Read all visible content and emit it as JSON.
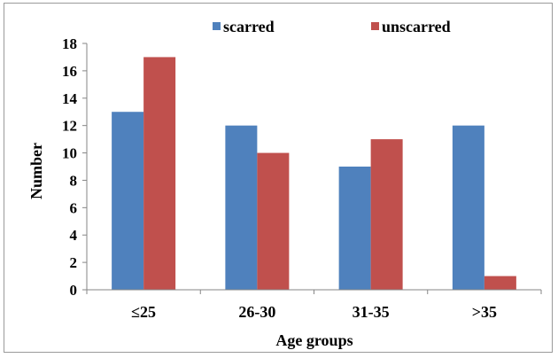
{
  "chart_data": {
    "type": "bar",
    "categories": [
      "≤25",
      "26-30",
      "31-35",
      ">35"
    ],
    "series": [
      {
        "name": "scarred",
        "values": [
          13,
          12,
          9,
          12
        ],
        "color": "#4f81bd"
      },
      {
        "name": "unscarred",
        "values": [
          17,
          10,
          11,
          1
        ],
        "color": "#c0504d"
      }
    ],
    "xlabel": "Age groups",
    "ylabel": "Number",
    "ylim": [
      0,
      18
    ],
    "yticks": [
      0,
      2,
      4,
      6,
      8,
      10,
      12,
      14,
      16,
      18
    ],
    "grid": false,
    "legend_position": "top-center"
  }
}
